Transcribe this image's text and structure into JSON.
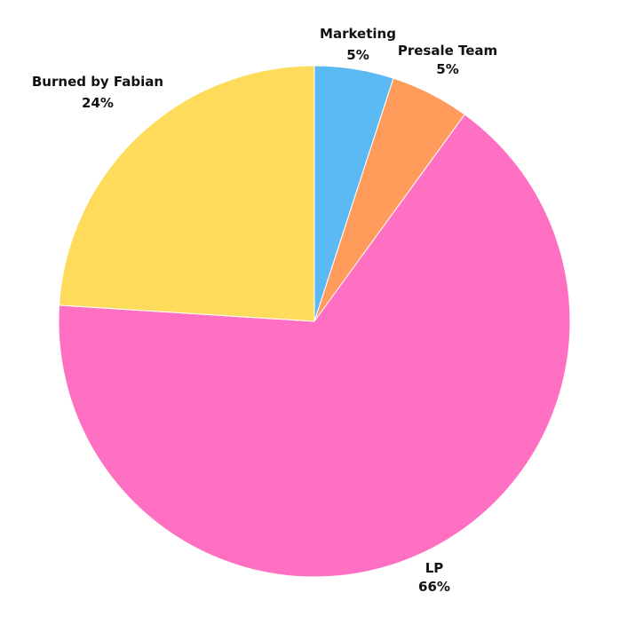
{
  "chart_data": {
    "type": "pie",
    "start_angle": "top",
    "direction": "clockwise",
    "slices": [
      {
        "label": "Marketing",
        "value": 5,
        "display": "5%",
        "color": "#5BB9F3"
      },
      {
        "label": "Presale Team",
        "value": 5,
        "display": "5%",
        "color": "#FF9B5B"
      },
      {
        "label": "LP",
        "value": 66,
        "display": "66%",
        "color": "#FF70C3"
      },
      {
        "label": "Burned by Fabian",
        "value": 24,
        "display": "24%",
        "color": "#FFDB5B"
      }
    ]
  }
}
